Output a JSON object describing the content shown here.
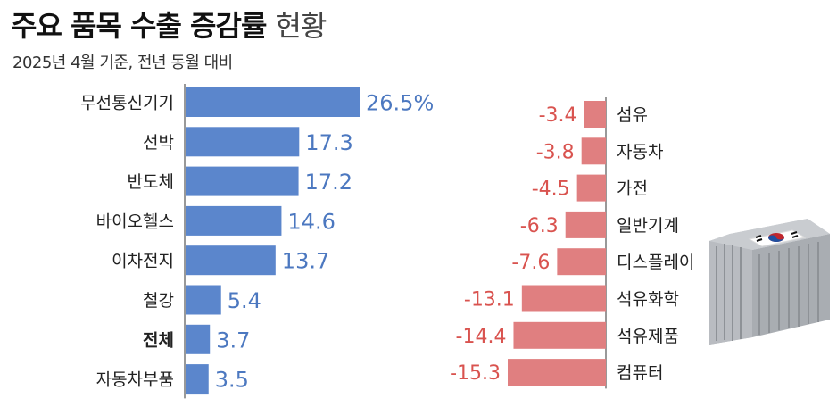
{
  "title": "주요 품목 수출 증감률",
  "title_suffix": "현황",
  "subtitle": "2025년 4월 기준, 전년 동월 대비",
  "colors": {
    "positive": "#5b86cc",
    "negative": "#e07f80",
    "positive_text": "#4c78c0",
    "negative_text": "#d9534f"
  },
  "chart_data": [
    {
      "type": "bar",
      "orientation": "horizontal",
      "categories": [
        "무선통신기기",
        "선박",
        "반도체",
        "바이오헬스",
        "이차전지",
        "철강",
        "전체",
        "자동차부품"
      ],
      "values": [
        26.5,
        17.3,
        17.2,
        14.6,
        13.7,
        5.4,
        3.7,
        3.5
      ],
      "labels": [
        "26.5%",
        "17.3",
        "17.2",
        "14.6",
        "13.7",
        "5.4",
        "3.7",
        "3.5"
      ],
      "highlight": "전체"
    },
    {
      "type": "bar",
      "orientation": "horizontal",
      "categories": [
        "섬유",
        "자동차",
        "가전",
        "일반기계",
        "디스플레이",
        "석유화학",
        "석유제품",
        "컴퓨터"
      ],
      "values": [
        -3.4,
        -3.8,
        -4.5,
        -6.3,
        -7.6,
        -13.1,
        -14.4,
        -15.3
      ],
      "labels": [
        "-3.4",
        "-3.8",
        "-4.5",
        "-6.3",
        "-7.6",
        "-13.1",
        "-14.4",
        "-15.3"
      ]
    }
  ]
}
